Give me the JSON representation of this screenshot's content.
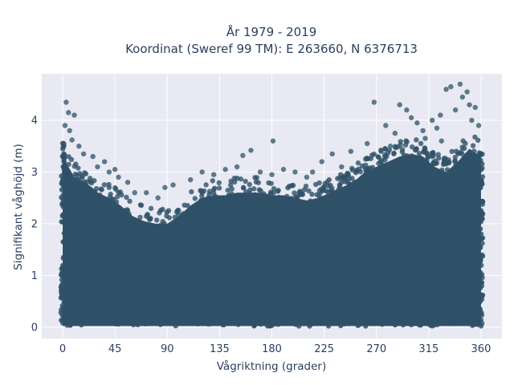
{
  "chart_data": {
    "type": "scatter",
    "title_lines": [
      "År 1979 - 2019",
      "Koordinat (Sweref 99 TM): E 263660, N 6376713"
    ],
    "xlabel": "Vågriktning (grader)",
    "ylabel": "Signifikant våghöjd (m)",
    "xlim": [
      -18,
      378
    ],
    "ylim": [
      -0.22,
      4.9
    ],
    "xticks": [
      0,
      45,
      90,
      135,
      180,
      225,
      270,
      315,
      360
    ],
    "yticks": [
      0,
      1,
      2,
      3,
      4
    ],
    "marker_color": "#2f5168",
    "plot_bg": "#e8e9f3",
    "grid": true,
    "dense_envelope": {
      "x": [
        0,
        10,
        20,
        30,
        40,
        50,
        60,
        70,
        80,
        90,
        100,
        110,
        120,
        130,
        140,
        150,
        160,
        170,
        180,
        190,
        200,
        210,
        220,
        230,
        240,
        250,
        260,
        270,
        280,
        290,
        300,
        310,
        320,
        330,
        340,
        350,
        360
      ],
      "y_min": 0.02,
      "y_upper": [
        3.3,
        2.9,
        2.8,
        2.6,
        2.5,
        2.35,
        2.15,
        2.05,
        2.0,
        2.0,
        2.15,
        2.35,
        2.5,
        2.55,
        2.55,
        2.6,
        2.6,
        2.6,
        2.55,
        2.55,
        2.5,
        2.45,
        2.5,
        2.6,
        2.7,
        2.8,
        3.0,
        3.1,
        3.2,
        3.3,
        3.35,
        3.3,
        3.1,
        3.0,
        3.2,
        3.45,
        3.3
      ]
    },
    "outliers": [
      [
        3,
        4.35
      ],
      [
        5,
        4.15
      ],
      [
        10,
        4.1
      ],
      [
        8,
        3.62
      ],
      [
        1,
        3.55
      ],
      [
        14,
        3.5
      ],
      [
        18,
        3.35
      ],
      [
        26,
        3.3
      ],
      [
        30,
        3.1
      ],
      [
        36,
        3.2
      ],
      [
        40,
        3.0
      ],
      [
        45,
        3.05
      ],
      [
        48,
        2.9
      ],
      [
        56,
        2.8
      ],
      [
        62,
        2.6
      ],
      [
        72,
        2.6
      ],
      [
        82,
        2.5
      ],
      [
        88,
        2.7
      ],
      [
        95,
        2.75
      ],
      [
        110,
        2.85
      ],
      [
        120,
        3.0
      ],
      [
        130,
        2.95
      ],
      [
        140,
        3.05
      ],
      [
        150,
        3.1
      ],
      [
        155,
        3.32
      ],
      [
        162,
        3.42
      ],
      [
        170,
        3.0
      ],
      [
        180,
        2.95
      ],
      [
        181,
        3.6
      ],
      [
        190,
        3.05
      ],
      [
        200,
        3.0
      ],
      [
        210,
        2.9
      ],
      [
        215,
        3.0
      ],
      [
        223,
        3.2
      ],
      [
        232,
        3.35
      ],
      [
        240,
        3.1
      ],
      [
        248,
        3.4
      ],
      [
        262,
        3.55
      ],
      [
        268,
        4.35
      ],
      [
        278,
        3.9
      ],
      [
        286,
        3.75
      ],
      [
        290,
        4.3
      ],
      [
        296,
        4.2
      ],
      [
        300,
        4.05
      ],
      [
        305,
        3.95
      ],
      [
        310,
        3.8
      ],
      [
        318,
        4.0
      ],
      [
        322,
        3.85
      ],
      [
        325,
        4.1
      ],
      [
        330,
        4.6
      ],
      [
        334,
        4.65
      ],
      [
        338,
        4.2
      ],
      [
        342,
        4.7
      ],
      [
        344,
        4.45
      ],
      [
        348,
        4.55
      ],
      [
        350,
        4.3
      ],
      [
        352,
        4.0
      ],
      [
        355,
        4.25
      ],
      [
        358,
        3.9
      ],
      [
        326,
        3.6
      ],
      [
        312,
        3.65
      ],
      [
        282,
        3.5
      ],
      [
        274,
        3.4
      ],
      [
        2,
        3.9
      ],
      [
        6,
        3.8
      ]
    ]
  }
}
